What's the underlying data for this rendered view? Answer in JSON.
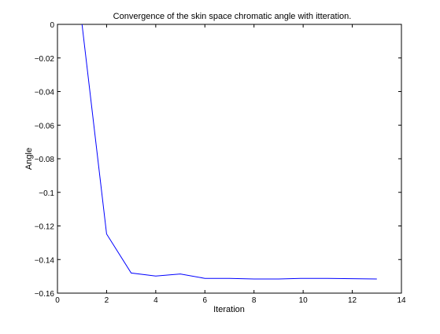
{
  "chart_data": {
    "type": "line",
    "title": "Convergence of the skin space chromatic angle with itteration.",
    "xlabel": "Iteration",
    "ylabel": "Angle",
    "xlim": [
      0,
      14
    ],
    "ylim": [
      -0.16,
      0
    ],
    "xticks": [
      0,
      2,
      4,
      6,
      8,
      10,
      12,
      14
    ],
    "xtick_labels": [
      "0",
      "2",
      "4",
      "6",
      "8",
      "10",
      "12",
      "14"
    ],
    "yticks": [
      0,
      -0.02,
      -0.04,
      -0.06,
      -0.08,
      -0.1,
      -0.12,
      -0.14,
      -0.16
    ],
    "ytick_labels": [
      "0",
      "−0.02",
      "−0.04",
      "−0.06",
      "−0.08",
      "−0.1",
      "−0.12",
      "−0.14",
      "−0.16"
    ],
    "grid": false,
    "series": [
      {
        "color": "#0000ff",
        "x": [
          1,
          2,
          3,
          4,
          5,
          6,
          7,
          8,
          9,
          10,
          11,
          12,
          13
        ],
        "y": [
          0,
          -0.1248,
          -0.148,
          -0.1498,
          -0.1486,
          -0.1512,
          -0.1512,
          -0.1516,
          -0.1516,
          -0.1512,
          -0.1512,
          -0.1514,
          -0.1516
        ]
      }
    ]
  }
}
